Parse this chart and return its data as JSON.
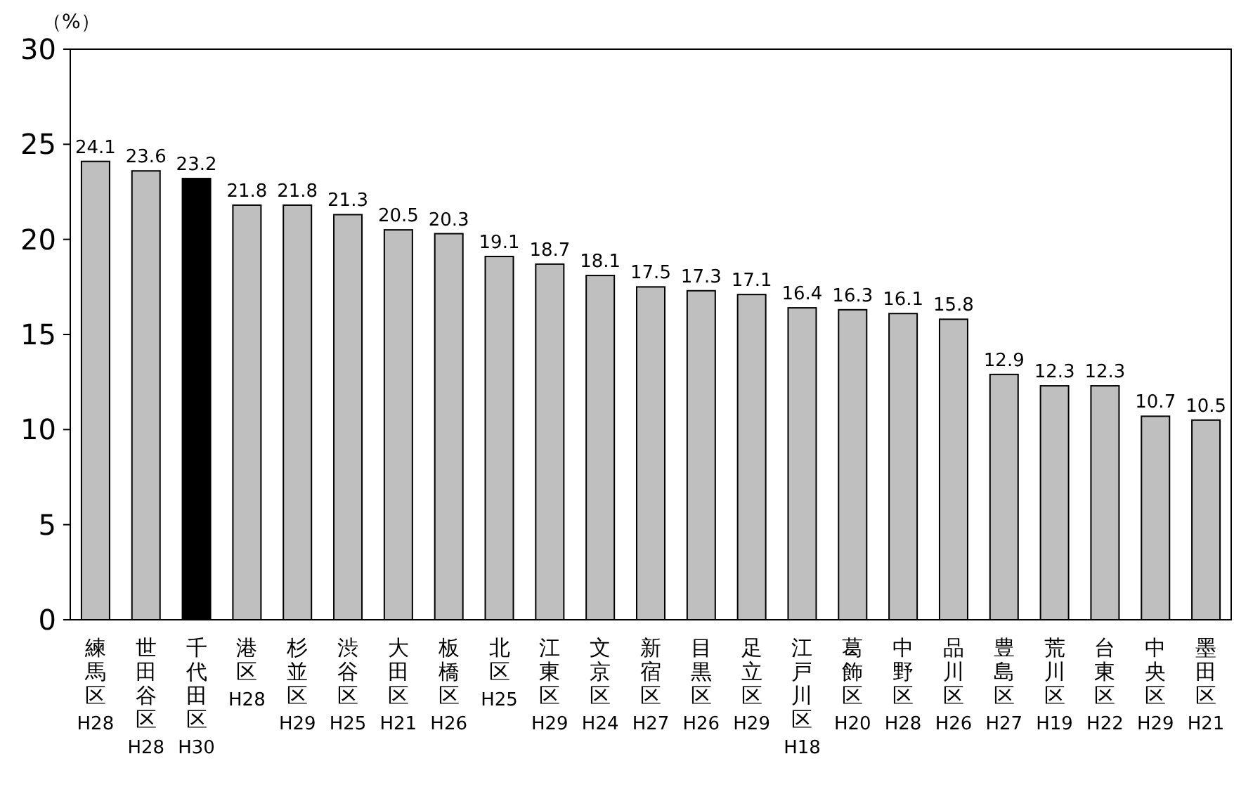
{
  "chart_data": {
    "type": "bar",
    "ylabel": "（%）",
    "categories": [
      "練馬区\nH28",
      "世田谷区\nH28",
      "千代田区\nH30",
      "港区\nH28",
      "杉並区\nH29",
      "渋谷区\nH25",
      "大田区\nH21",
      "板橋区\nH26",
      "北区\nH25",
      "江東区\nH29",
      "文京区\nH24",
      "新宿区\nH27",
      "目黒区\nH26",
      "足立区\nH29",
      "江戸川区\nH18",
      "葛飾区\nH20",
      "中野区\nH28",
      "品川区\nH26",
      "豊島区\nH27",
      "荒川区\nH19",
      "台東区\nH22",
      "中央区\nH29",
      "墨田区\nH21"
    ],
    "values": [
      24.1,
      23.6,
      23.2,
      21.8,
      21.8,
      21.3,
      20.5,
      20.3,
      19.1,
      18.7,
      18.1,
      17.5,
      17.3,
      17.1,
      16.4,
      16.3,
      16.1,
      15.8,
      12.9,
      12.3,
      12.3,
      10.7,
      10.5
    ],
    "colors": [
      "#bfbfbf",
      "#bfbfbf",
      "#000000",
      "#bfbfbf",
      "#bfbfbf",
      "#bfbfbf",
      "#bfbfbf",
      "#bfbfbf",
      "#bfbfbf",
      "#bfbfbf",
      "#bfbfbf",
      "#bfbfbf",
      "#bfbfbf",
      "#bfbfbf",
      "#bfbfbf",
      "#bfbfbf",
      "#bfbfbf",
      "#bfbfbf",
      "#bfbfbf",
      "#bfbfbf",
      "#bfbfbf",
      "#bfbfbf",
      "#bfbfbf"
    ],
    "ylim": [
      0,
      30
    ],
    "yticks": [
      0,
      5,
      10,
      15,
      20,
      25,
      30
    ],
    "data_labels": true,
    "grid": false
  }
}
